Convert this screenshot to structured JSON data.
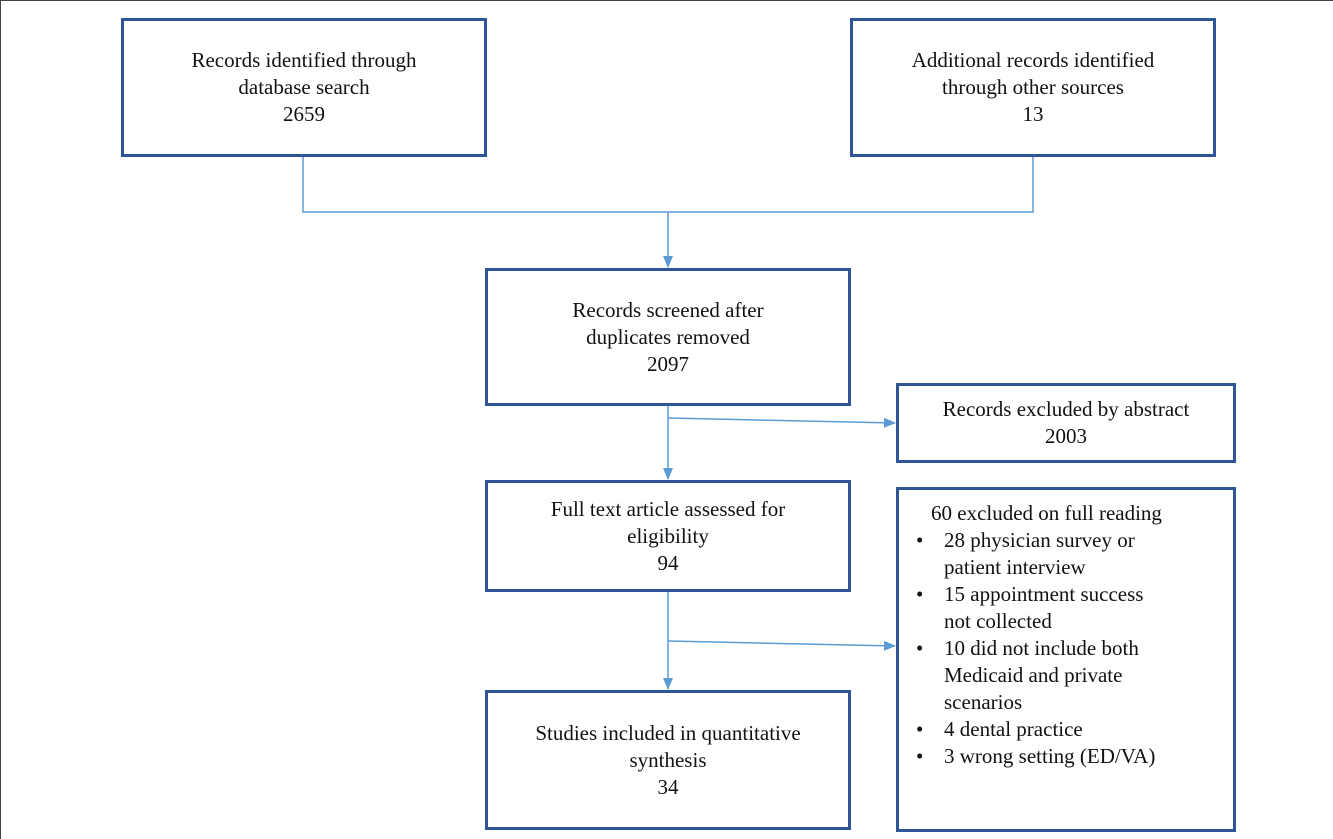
{
  "boxes": {
    "database_search": {
      "title_lines": [
        "Records identified through",
        "database search"
      ],
      "count": "2659"
    },
    "other_sources": {
      "title_lines": [
        "Additional records identified",
        "through other sources"
      ],
      "count": "13"
    },
    "screened": {
      "title_lines": [
        "Records screened after",
        "duplicates removed"
      ],
      "count": "2097"
    },
    "excluded_abstract": {
      "title_lines": [
        "Records excluded by abstract"
      ],
      "count": "2003"
    },
    "full_text": {
      "title_lines": [
        "Full text article assessed for",
        "eligibility"
      ],
      "count": "94"
    },
    "included": {
      "title_lines": [
        "Studies included in quantitative",
        "synthesis"
      ],
      "count": "34"
    },
    "excluded_full": {
      "heading": "60 excluded on full reading",
      "bullet_glyph": "•",
      "reasons": [
        "28 physician survey or\npatient interview",
        "15 appointment success\nnot collected",
        "10 did not include both\nMedicaid and private\nscenarios",
        "4 dental practice",
        "3 wrong setting (ED/VA)"
      ]
    }
  },
  "colors": {
    "box_border": "#2E5597",
    "connector": "#5B9BD5"
  }
}
